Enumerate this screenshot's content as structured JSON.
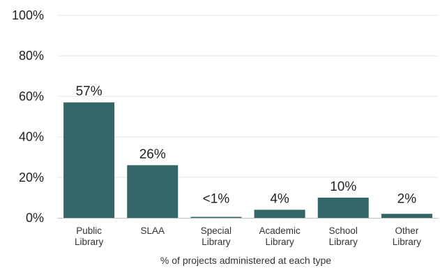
{
  "chart_data": {
    "type": "bar",
    "categories": [
      [
        "Public",
        "Library"
      ],
      [
        "SLAA"
      ],
      [
        "Special",
        "Library"
      ],
      [
        "Academic",
        "Library"
      ],
      [
        "School",
        "Library"
      ],
      [
        "Other",
        "Library"
      ]
    ],
    "values": [
      57,
      26,
      0.5,
      4,
      10,
      2
    ],
    "data_labels": [
      "57%",
      "26%",
      "<1%",
      "4%",
      "10%",
      "2%"
    ],
    "y_ticks": [
      "0%",
      "20%",
      "40%",
      "60%",
      "80%",
      "100%"
    ],
    "ylim": [
      0,
      100
    ],
    "xlabel": "% of projects administered at each type",
    "ylabel": "",
    "grid": true,
    "bar_color": "#336666"
  }
}
